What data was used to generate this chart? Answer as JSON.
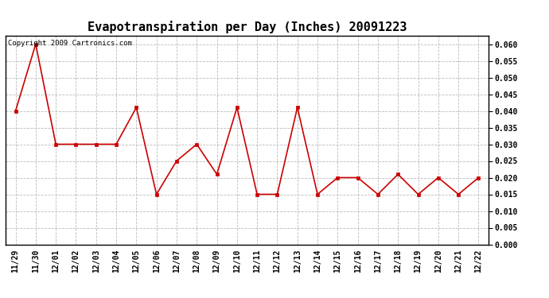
{
  "title": "Evapotranspiration per Day (Inches) 20091223",
  "copyright_text": "Copyright 2009 Cartronics.com",
  "x_labels": [
    "11/29",
    "11/30",
    "12/01",
    "12/02",
    "12/03",
    "12/04",
    "12/05",
    "12/06",
    "12/07",
    "12/08",
    "12/09",
    "12/10",
    "12/11",
    "12/12",
    "12/13",
    "12/14",
    "12/15",
    "12/16",
    "12/17",
    "12/18",
    "12/19",
    "12/20",
    "12/21",
    "12/22"
  ],
  "y_values": [
    0.04,
    0.06,
    0.03,
    0.03,
    0.03,
    0.03,
    0.041,
    0.015,
    0.025,
    0.03,
    0.021,
    0.041,
    0.015,
    0.015,
    0.041,
    0.015,
    0.02,
    0.02,
    0.015,
    0.021,
    0.015,
    0.02,
    0.015,
    0.02
  ],
  "line_color": "#cc0000",
  "marker": "s",
  "marker_size": 3,
  "ylim": [
    0.0,
    0.0625
  ],
  "yticks": [
    0.0,
    0.005,
    0.01,
    0.015,
    0.02,
    0.025,
    0.03,
    0.035,
    0.04,
    0.045,
    0.05,
    0.055,
    0.06
  ],
  "background_color": "#ffffff",
  "grid_color": "#aaaaaa",
  "title_fontsize": 11,
  "tick_fontsize": 7,
  "copyright_fontsize": 6.5
}
